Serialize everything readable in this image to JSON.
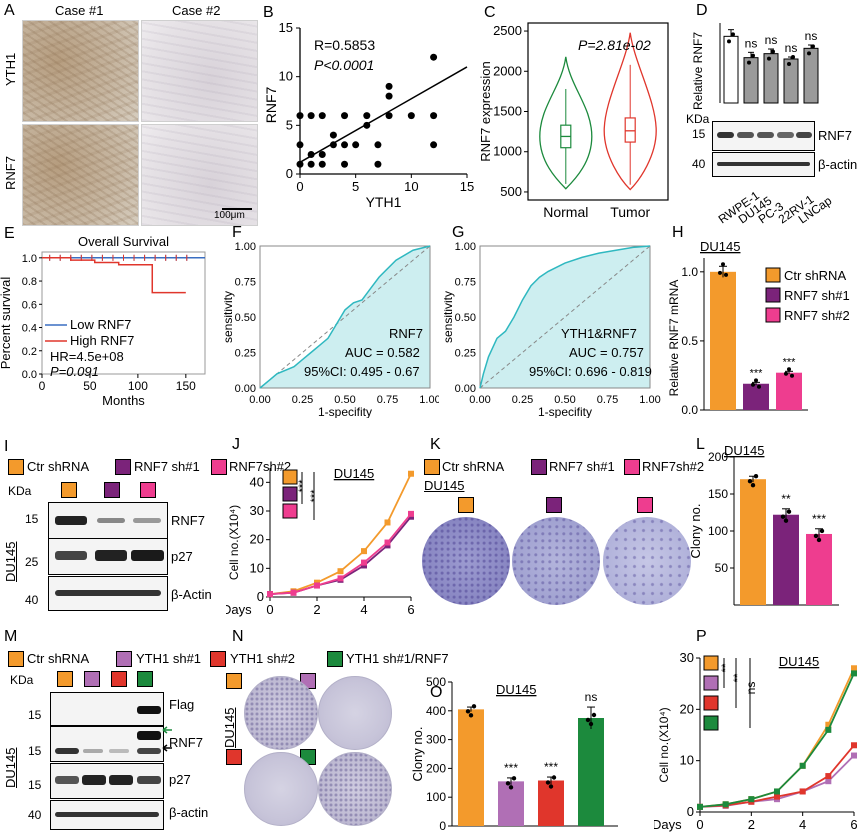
{
  "colors": {
    "ctr": "#f39a2c",
    "sh1": "#7b237a",
    "sh2": "#ee3d8f",
    "yth_sh1": "#b06fb5",
    "yth_sh2": "#e0362c",
    "yth_rescue": "#1c8a3d",
    "normal": "#1c8a3d",
    "tumor": "#e0362c",
    "roc_fill": "#cdeef0",
    "roc_line": "#2fb8c0",
    "km_low": "#3a6ec2",
    "km_high": "#e0362c"
  },
  "panelA": {
    "label": "A",
    "case1": "Case #1",
    "case2": "Case #2",
    "row1": "YTH1",
    "row2": "RNF7",
    "scale": "100μm"
  },
  "panelB": {
    "label": "B",
    "r": "R=0.5853",
    "p": "P<0.0001"
  },
  "panelC": {
    "label": "C",
    "p": "P=2.81e-02"
  },
  "panelD": {
    "label": "D",
    "kda": "KDa",
    "wb1": "RNF7",
    "wb2": "β-actin",
    "m1": "15",
    "m2": "40",
    "ns": "ns"
  },
  "panelE": {
    "label": "E",
    "title": "Overall Survival",
    "legend_low": "Low RNF7",
    "legend_high": "High RNF7",
    "hr": "HR=4.5e+08",
    "p": "P=0.091"
  },
  "panelF": {
    "label": "F",
    "name": "RNF7",
    "auc": "AUC =  0.582",
    "ci": "95%CI:  0.495 - 0.67"
  },
  "panelG": {
    "label": "G",
    "name": "YTH1&RNF7",
    "auc": "AUC =  0.757",
    "ci": "95%CI:  0.696 - 0.819"
  },
  "panelH": {
    "label": "H",
    "cell": "DU145",
    "legend": [
      "Ctr shRNA",
      "RNF7 sh#1",
      "RNF7 sh#2"
    ],
    "stars": "***"
  },
  "panelI": {
    "label": "I",
    "legend": [
      "Ctr shRNA",
      "RNF7 sh#1",
      "RNF7sh#2"
    ],
    "kda": "KDa",
    "m1": "15",
    "m2": "25",
    "m3": "40",
    "wb1": "RNF7",
    "wb2": "p27",
    "wb3": "β-Actin",
    "cell": "DU145"
  },
  "panelJ": {
    "label": "J",
    "cell": "DU145",
    "stars": "***"
  },
  "panelK": {
    "label": "K",
    "legend": [
      "Ctr shRNA",
      "RNF7 sh#1",
      "RNF7sh#2"
    ],
    "cell": "DU145"
  },
  "panelL": {
    "label": "L",
    "cell": "DU145",
    "star1": "**",
    "star2": "***"
  },
  "panelM": {
    "label": "M",
    "legend1": "Ctr shRNA",
    "legend2": "YTH1 sh#1",
    "kda": "KDa",
    "m1": "15",
    "m2": "15",
    "m3": "15",
    "m4": "40",
    "wb1": "Flag",
    "wb2": "RNF7",
    "wb3": "p27",
    "wb4": "β-actin",
    "cell": "DU145"
  },
  "panelN": {
    "label": "N",
    "legend1": "YTH1 sh#2",
    "legend2": "YTH1 sh#1/RNF7",
    "cell": "DU145"
  },
  "panelO": {
    "label": "O",
    "cell": "DU145",
    "stars": "***",
    "ns": "ns"
  },
  "panelP": {
    "label": "P",
    "cell": "DU145",
    "s1": "**",
    "s2": "**",
    "s3": "ns"
  },
  "chart_data": [
    {
      "panel": "B",
      "type": "scatter",
      "xlabel": "YTH1",
      "ylabel": "RNF7",
      "xlim": [
        0,
        15
      ],
      "ylim": [
        0,
        15
      ],
      "xticks": [
        0,
        5,
        10,
        15
      ],
      "yticks": [
        0,
        5,
        10,
        15
      ],
      "points": [
        [
          0,
          1
        ],
        [
          0,
          3
        ],
        [
          0,
          6
        ],
        [
          1,
          1
        ],
        [
          1,
          2
        ],
        [
          1,
          6
        ],
        [
          2,
          1
        ],
        [
          2,
          2
        ],
        [
          2,
          6
        ],
        [
          3,
          3
        ],
        [
          3,
          4
        ],
        [
          4,
          1
        ],
        [
          4,
          3
        ],
        [
          4,
          6
        ],
        [
          5,
          3
        ],
        [
          6,
          5
        ],
        [
          6,
          6
        ],
        [
          7,
          1
        ],
        [
          7,
          3
        ],
        [
          8,
          6
        ],
        [
          8,
          8
        ],
        [
          8,
          9
        ],
        [
          10,
          6
        ],
        [
          12,
          3
        ],
        [
          12,
          6
        ],
        [
          12,
          12
        ]
      ],
      "fit": [
        [
          0,
          1.2
        ],
        [
          15,
          11
        ]
      ]
    },
    {
      "panel": "C",
      "type": "violin",
      "ylabel": "RNF7 expression",
      "categories": [
        "Normal",
        "Tumor"
      ],
      "ylim": [
        400,
        2600
      ],
      "yticks": [
        500,
        1000,
        1500,
        2000,
        2500
      ],
      "median": [
        1190,
        1260
      ],
      "q1": [
        1050,
        1120
      ],
      "q3": [
        1330,
        1420
      ],
      "min": [
        540,
        530
      ],
      "max": [
        2180,
        2480
      ]
    },
    {
      "panel": "D",
      "type": "bar",
      "ylabel": "Relative RNF7",
      "categories": [
        "RWPE-1",
        "DU145",
        "PC-3",
        "22RV-1",
        "LNCap"
      ],
      "values": [
        1.0,
        0.68,
        0.74,
        0.66,
        0.82
      ],
      "errors": [
        0.1,
        0.08,
        0.07,
        0.03,
        0.05
      ]
    },
    {
      "panel": "E",
      "type": "line",
      "xlabel": "Months",
      "ylabel": "Percent survival",
      "xlim": [
        0,
        170
      ],
      "ylim": [
        0,
        1.05
      ],
      "xticks": [
        0,
        50,
        100,
        150
      ],
      "yticks": [
        0.0,
        0.2,
        0.4,
        0.6,
        0.8,
        1.0
      ],
      "series": [
        {
          "name": "Low RNF7",
          "x": [
            0,
            170
          ],
          "y": [
            1.0,
            1.0
          ]
        },
        {
          "name": "High RNF7",
          "x": [
            0,
            30,
            30,
            55,
            55,
            80,
            80,
            115,
            115,
            150
          ],
          "y": [
            1.0,
            1.0,
            0.98,
            0.98,
            0.96,
            0.96,
            0.94,
            0.94,
            0.7,
            0.7
          ]
        }
      ]
    },
    {
      "panel": "F",
      "type": "area",
      "xlabel": "1-specifity",
      "ylabel": "sensitivity",
      "xlim": [
        0,
        1
      ],
      "ylim": [
        0,
        1
      ],
      "ticks": [
        "0.00",
        "0.25",
        "0.50",
        "0.75",
        "1.00"
      ],
      "x": [
        0,
        0.05,
        0.1,
        0.2,
        0.25,
        0.3,
        0.35,
        0.4,
        0.45,
        0.5,
        0.55,
        0.6,
        0.65,
        0.7,
        0.8,
        0.9,
        1.0
      ],
      "y": [
        0,
        0.05,
        0.1,
        0.15,
        0.2,
        0.25,
        0.3,
        0.35,
        0.45,
        0.55,
        0.6,
        0.62,
        0.7,
        0.78,
        0.9,
        0.97,
        1.0
      ]
    },
    {
      "panel": "G",
      "type": "area",
      "xlabel": "1-specifity",
      "ylabel": "sensitivity",
      "xlim": [
        0,
        1
      ],
      "ylim": [
        0,
        1
      ],
      "ticks": [
        "0.00",
        "0.25",
        "0.50",
        "0.75",
        "1.00"
      ],
      "x": [
        0,
        0.02,
        0.05,
        0.1,
        0.15,
        0.2,
        0.25,
        0.3,
        0.35,
        0.4,
        0.5,
        0.6,
        0.7,
        0.8,
        0.9,
        1.0
      ],
      "y": [
        0,
        0.1,
        0.22,
        0.35,
        0.4,
        0.5,
        0.62,
        0.72,
        0.78,
        0.82,
        0.88,
        0.92,
        0.95,
        0.97,
        0.99,
        1.0
      ]
    },
    {
      "panel": "H",
      "type": "bar",
      "ylabel": "Relative RNF7 mRNA",
      "categories": [
        "Ctr shRNA",
        "RNF7 sh#1",
        "RNF7 sh#2"
      ],
      "values": [
        1.0,
        0.19,
        0.27
      ],
      "errors": [
        0.04,
        0.01,
        0.01
      ],
      "ylim": [
        0,
        1.1
      ],
      "yticks": [
        0,
        0.5,
        1.0
      ]
    },
    {
      "panel": "J",
      "type": "line",
      "xlabel": "Days",
      "ylabel": "Cell no.(X10⁴)",
      "xlim": [
        0,
        6
      ],
      "ylim": [
        0,
        45
      ],
      "xticks": [
        0,
        2,
        4,
        6
      ],
      "yticks": [
        0,
        10,
        20,
        30,
        40
      ],
      "series": [
        {
          "name": "Ctr shRNA",
          "x": [
            0,
            1,
            2,
            3,
            4,
            5,
            6
          ],
          "y": [
            1,
            2,
            5,
            9,
            16,
            26,
            43
          ]
        },
        {
          "name": "RNF7 sh#1",
          "x": [
            0,
            1,
            2,
            3,
            4,
            5,
            6
          ],
          "y": [
            1,
            1.5,
            4,
            6,
            11,
            18,
            28
          ]
        },
        {
          "name": "RNF7sh#2",
          "x": [
            0,
            1,
            2,
            3,
            4,
            5,
            6
          ],
          "y": [
            1,
            1.5,
            4,
            6.5,
            12,
            19,
            29
          ]
        }
      ]
    },
    {
      "panel": "L",
      "type": "bar",
      "ylabel": "Clony no.",
      "categories": [
        "Ctr shRNA",
        "RNF7 sh#1",
        "RNF7sh#2"
      ],
      "values": [
        170,
        122,
        96
      ],
      "errors": [
        4,
        8,
        7
      ],
      "ylim": [
        0,
        200
      ],
      "yticks": [
        50,
        100,
        150,
        200
      ]
    },
    {
      "panel": "O",
      "type": "bar",
      "ylabel": "Clony no.",
      "categories": [
        "Ctr shRNA",
        "YTH1 sh#1",
        "YTH1 sh#2",
        "YTH1 sh#1/RNF7"
      ],
      "values": [
        405,
        155,
        158,
        375
      ],
      "errors": [
        8,
        12,
        12,
        38
      ],
      "ylim": [
        0,
        500
      ],
      "yticks": [
        0,
        100,
        200,
        300,
        400,
        500
      ]
    },
    {
      "panel": "P",
      "type": "line",
      "xlabel": "Days",
      "ylabel": "Cell no.(X10⁴)",
      "xlim": [
        0,
        6
      ],
      "ylim": [
        0,
        30
      ],
      "xticks": [
        0,
        2,
        4,
        6
      ],
      "yticks": [
        0,
        10,
        20,
        30
      ],
      "series": [
        {
          "name": "Ctr shRNA",
          "x": [
            0,
            1,
            2,
            3,
            4,
            5,
            6
          ],
          "y": [
            1,
            1.5,
            2.5,
            4,
            9,
            17,
            28
          ]
        },
        {
          "name": "YTH1 sh#1",
          "x": [
            0,
            1,
            2,
            3,
            4,
            5,
            6
          ],
          "y": [
            1,
            1.2,
            2,
            2.5,
            4,
            6,
            11
          ]
        },
        {
          "name": "YTH1 sh#2",
          "x": [
            0,
            1,
            2,
            3,
            4,
            5,
            6
          ],
          "y": [
            1,
            1.3,
            2,
            3,
            4,
            7,
            13
          ]
        },
        {
          "name": "YTH1 sh#1/RNF7",
          "x": [
            0,
            1,
            2,
            3,
            4,
            5,
            6
          ],
          "y": [
            1,
            1.5,
            2.5,
            4,
            9,
            16,
            27
          ]
        }
      ]
    }
  ]
}
